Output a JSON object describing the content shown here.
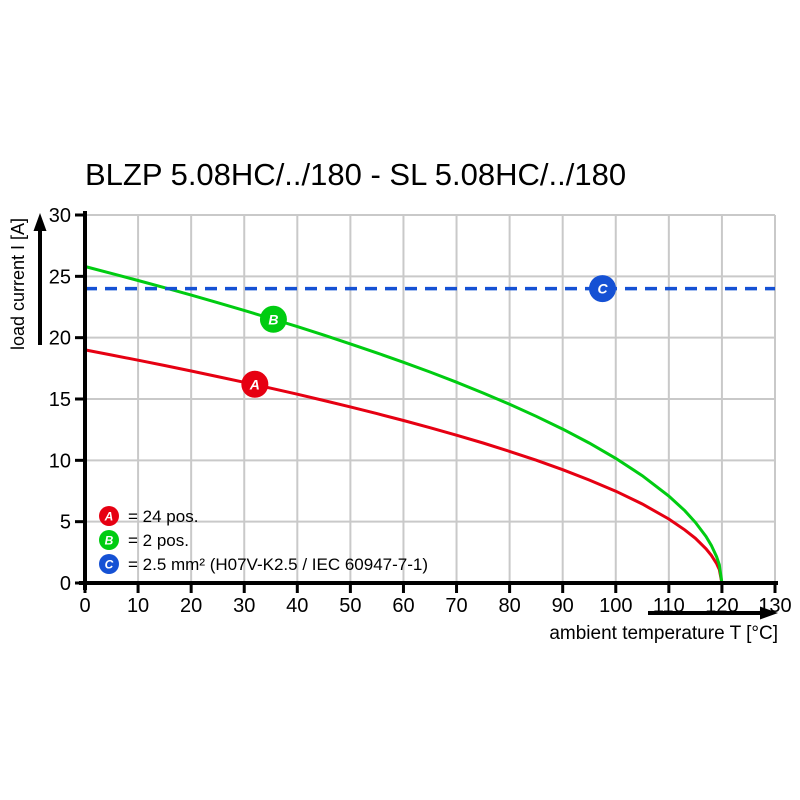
{
  "title": "BLZP 5.08HC/../180 - SL 5.08HC/../180",
  "chart_data": {
    "type": "line",
    "title": "BLZP 5.08HC/../180 - SL 5.08HC/../180",
    "xlabel": "ambient temperature T [°C]",
    "ylabel": "load current I [A]",
    "xlim": [
      0,
      130
    ],
    "ylim": [
      0,
      30
    ],
    "x_ticks": [
      0,
      10,
      20,
      30,
      40,
      50,
      60,
      70,
      80,
      90,
      100,
      110,
      120,
      130
    ],
    "y_ticks": [
      0,
      5,
      10,
      15,
      20,
      25,
      30
    ],
    "grid": true,
    "grid_color": "#c9c9c9",
    "axis_color": "#000000",
    "series": [
      {
        "id": "A",
        "name": "24 pos.",
        "color": "#e60012",
        "style": "solid",
        "points": [
          [
            0,
            19.0
          ],
          [
            5,
            18.59
          ],
          [
            10,
            18.16
          ],
          [
            15,
            17.73
          ],
          [
            20,
            17.28
          ],
          [
            25,
            16.83
          ],
          [
            30,
            16.36
          ],
          [
            35,
            15.88
          ],
          [
            40,
            15.39
          ],
          [
            45,
            14.88
          ],
          [
            50,
            14.36
          ],
          [
            55,
            13.81
          ],
          [
            60,
            13.25
          ],
          [
            65,
            12.66
          ],
          [
            70,
            12.05
          ],
          [
            75,
            11.41
          ],
          [
            80,
            10.73
          ],
          [
            85,
            10.01
          ],
          [
            90,
            9.24
          ],
          [
            95,
            8.4
          ],
          [
            100,
            7.48
          ],
          [
            105,
            6.44
          ],
          [
            110,
            5.22
          ],
          [
            113,
            4.33
          ],
          [
            115,
            3.64
          ],
          [
            117,
            2.79
          ],
          [
            118,
            2.26
          ],
          [
            119,
            1.58
          ],
          [
            119.5,
            1.1
          ],
          [
            120,
            0
          ]
        ]
      },
      {
        "id": "B",
        "name": "2 pos.",
        "color": "#00cc11",
        "style": "solid",
        "points": [
          [
            0,
            25.8
          ],
          [
            5,
            25.24
          ],
          [
            10,
            24.66
          ],
          [
            15,
            24.07
          ],
          [
            20,
            23.47
          ],
          [
            25,
            22.85
          ],
          [
            30,
            22.22
          ],
          [
            35,
            21.56
          ],
          [
            40,
            20.9
          ],
          [
            45,
            20.21
          ],
          [
            50,
            19.49
          ],
          [
            55,
            18.76
          ],
          [
            60,
            17.99
          ],
          [
            65,
            17.2
          ],
          [
            70,
            16.37
          ],
          [
            75,
            15.49
          ],
          [
            80,
            14.57
          ],
          [
            85,
            13.59
          ],
          [
            90,
            12.55
          ],
          [
            95,
            11.41
          ],
          [
            100,
            10.16
          ],
          [
            105,
            8.75
          ],
          [
            110,
            7.09
          ],
          [
            113,
            5.89
          ],
          [
            115,
            4.94
          ],
          [
            117,
            3.79
          ],
          [
            118,
            3.07
          ],
          [
            119,
            2.14
          ],
          [
            119.5,
            1.49
          ],
          [
            120,
            0
          ]
        ]
      },
      {
        "id": "C",
        "name": "2.5 mm² (H07V-K2.5 / IEC 60947-7-1)",
        "color": "#1551d4",
        "style": "dashed",
        "points": [
          [
            0,
            24
          ],
          [
            130,
            24
          ]
        ]
      }
    ],
    "markers": [
      {
        "letter": "A",
        "color": "#e60012",
        "t": 32,
        "i": 16.2
      },
      {
        "letter": "B",
        "color": "#00cc11",
        "t": 35.5,
        "i": 21.5
      },
      {
        "letter": "C",
        "color": "#1551d4",
        "t": 97.5,
        "i": 24
      }
    ],
    "legend": {
      "position": "bottom-left-inside",
      "items": [
        {
          "letter": "A",
          "color": "#e60012",
          "label": "= 24 pos."
        },
        {
          "letter": "B",
          "color": "#00cc11",
          "label": "= 2 pos."
        },
        {
          "letter": "C",
          "color": "#1551d4",
          "label": "= 2.5 mm² (H07V-K2.5 / IEC 60947-7-1)"
        }
      ]
    }
  }
}
